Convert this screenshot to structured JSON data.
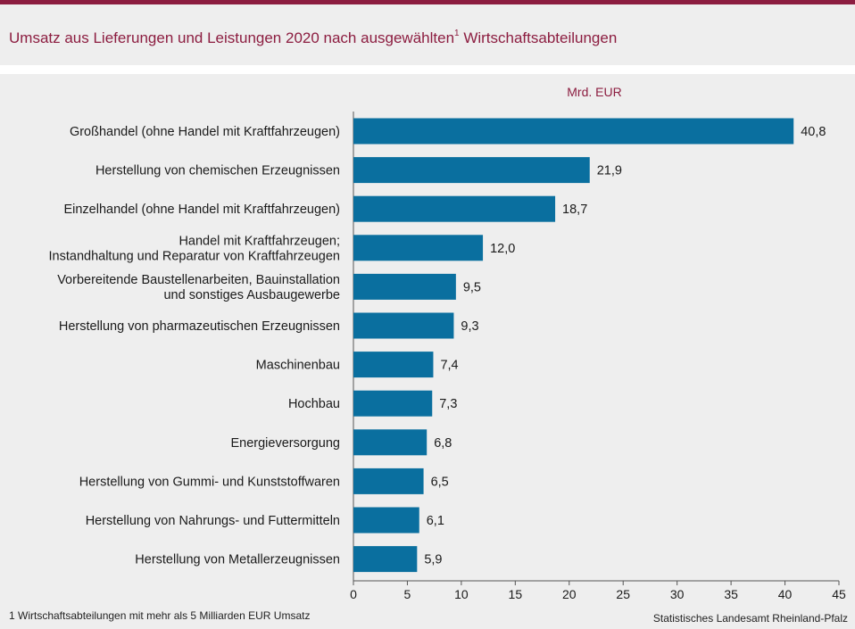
{
  "header": {
    "title": "Umsatz aus Lieferungen und Leistungen 2020 nach ausgewählten",
    "title_sup": "1",
    "title_end": " Wirtschaftsabteilungen"
  },
  "footer": {
    "footnote": "1 Wirtschaftsabteilungen  mit mehr als 5 Milliarden  EUR Umsatz",
    "source": "Statistisches Landesamt  Rheinland-Pfalz"
  },
  "colors": {
    "bar": "#0a6f9f",
    "accent": "#8c1d40"
  },
  "chart_data": {
    "type": "bar",
    "orientation": "horizontal",
    "title": "Umsatz aus Lieferungen und Leistungen 2020 nach ausgewählten1 Wirtschaftsabteilungen",
    "unit": "Mrd. EUR",
    "xlim": [
      0,
      45
    ],
    "xticks": [
      "0",
      "5",
      "10",
      "15",
      "20",
      "25",
      "30",
      "35",
      "40",
      "45"
    ],
    "categories": [
      [
        "Großhandel (ohne Handel mit Kraftfahrzeugen)"
      ],
      [
        "Herstellung von chemischen Erzeugnissen"
      ],
      [
        "Einzelhandel (ohne Handel mit Kraftfahrzeugen)"
      ],
      [
        "Handel mit Kraftfahrzeugen;",
        "Instandhaltung und Reparatur von Kraftfahrzeugen"
      ],
      [
        "Vorbereitende Baustellenarbeiten, Bauinstallation",
        "und sonstiges Ausbaugewerbe"
      ],
      [
        "Herstellung von pharmazeutischen Erzeugnissen"
      ],
      [
        "Maschinenbau"
      ],
      [
        "Hochbau"
      ],
      [
        "Energieversorgung"
      ],
      [
        "Herstellung von Gummi- und Kunststoffwaren"
      ],
      [
        "Herstellung von Nahrungs- und Futtermitteln"
      ],
      [
        "Herstellung von Metallerzeugnissen"
      ]
    ],
    "values": [
      40.8,
      21.9,
      18.7,
      12.0,
      9.5,
      9.3,
      7.4,
      7.3,
      6.8,
      6.5,
      6.1,
      5.9
    ],
    "value_labels": [
      "40,8",
      "21,9",
      "18,7",
      "12,0",
      "9,5",
      "9,3",
      "7,4",
      "7,3",
      "6,8",
      "6,5",
      "6,1",
      "5,9"
    ],
    "grid": false,
    "legend": "none"
  }
}
